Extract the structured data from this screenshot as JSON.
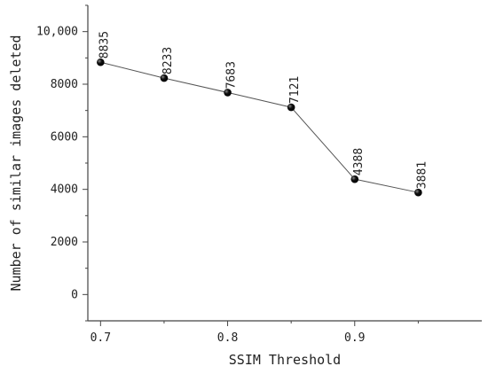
{
  "chart_data": {
    "type": "line",
    "title": "",
    "xlabel": "SSIM Threshold",
    "ylabel": "Number of similar images deleted",
    "x": [
      0.7,
      0.75,
      0.8,
      0.85,
      0.9,
      0.95
    ],
    "series": [
      {
        "values": [
          8835,
          8233,
          7683,
          7121,
          4388,
          3881
        ]
      }
    ],
    "data_labels": [
      "8835",
      "8233",
      "7683",
      "7121",
      "4388",
      "3881"
    ],
    "xticks": [
      0.7,
      0.8,
      0.9
    ],
    "xtick_labels": [
      "0.7",
      "0.8",
      "0.9"
    ],
    "yticks": [
      0,
      2000,
      4000,
      6000,
      8000,
      10000
    ],
    "ytick_labels": [
      "0",
      "2000",
      "4000",
      "6000",
      "8000",
      "10,000"
    ],
    "xlim": [
      0.69,
      1.0
    ],
    "ylim": [
      -1000,
      11000
    ],
    "grid": false,
    "marker_color": "#111111",
    "line_color": "#555555"
  }
}
